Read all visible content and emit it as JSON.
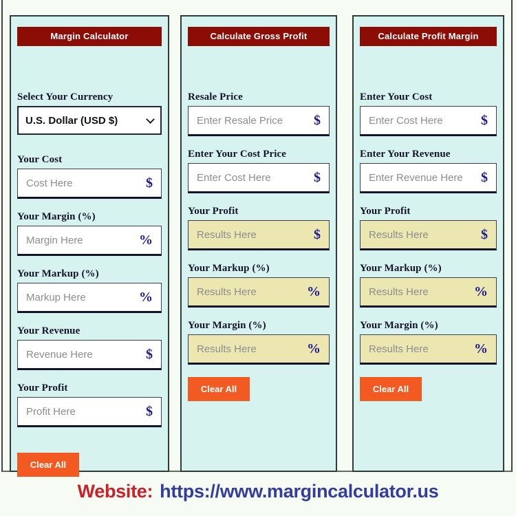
{
  "colors": {
    "page_background": "#f6fbf3",
    "panel_background": "#d7f3ef",
    "panel_border": "#2e3c38",
    "header_background": "#8c0d06",
    "header_text": "#ffffff",
    "result_background": "#ece6b0",
    "clear_button": "#f25a22",
    "symbol_navy": "#1b1b91",
    "website_label_red": "#cb2027",
    "website_url_blue": "#333d9e"
  },
  "panels": [
    {
      "title": "Margin Calculator",
      "clear_label": "Clear All",
      "currency": {
        "label": "Select Your Currency",
        "value": "U.S. Dollar (USD $)"
      },
      "fields": [
        {
          "label": "Your Cost",
          "placeholder": "Cost Here",
          "symbol": "$",
          "type": "input"
        },
        {
          "label": "Your Margin (%)",
          "placeholder": "Margin Here",
          "symbol": "%",
          "type": "input"
        },
        {
          "label": "Your Markup (%)",
          "placeholder": "Markup Here",
          "symbol": "%",
          "type": "input"
        },
        {
          "label": "Your Revenue",
          "placeholder": "Revenue Here",
          "symbol": "$",
          "type": "input"
        },
        {
          "label": "Your Profit",
          "placeholder": "Profit Here",
          "symbol": "$",
          "type": "input"
        }
      ]
    },
    {
      "title": "Calculate Gross Profit",
      "clear_label": "Clear All",
      "fields": [
        {
          "label": "Resale Price",
          "placeholder": "Enter Resale Price",
          "symbol": "$",
          "type": "input"
        },
        {
          "label": "Enter Your Cost Price",
          "placeholder": "Enter Cost Here",
          "symbol": "$",
          "type": "input"
        },
        {
          "label": "Your Profit",
          "placeholder": "Results Here",
          "symbol": "$",
          "type": "result"
        },
        {
          "label": "Your Markup (%)",
          "placeholder": "Results Here",
          "symbol": "%",
          "type": "result"
        },
        {
          "label": "Your Margin (%)",
          "placeholder": "Results Here",
          "symbol": "%",
          "type": "result"
        }
      ]
    },
    {
      "title": "Calculate Profit Margin",
      "clear_label": "Clear All",
      "fields": [
        {
          "label": "Enter Your Cost",
          "placeholder": "Enter Cost Here",
          "symbol": "$",
          "type": "input"
        },
        {
          "label": "Enter Your Revenue",
          "placeholder": "Enter Revenue Here",
          "symbol": "$",
          "type": "input"
        },
        {
          "label": "Your Profit",
          "placeholder": "Results Here",
          "symbol": "$",
          "type": "result"
        },
        {
          "label": "Your Markup (%)",
          "placeholder": "Results Here",
          "symbol": "%",
          "type": "result"
        },
        {
          "label": "Your Margin (%)",
          "placeholder": "Results Here",
          "symbol": "%",
          "type": "result"
        }
      ]
    }
  ],
  "footer": {
    "website_label": "Website:",
    "website_url": "https://www.margincalculator.us"
  }
}
